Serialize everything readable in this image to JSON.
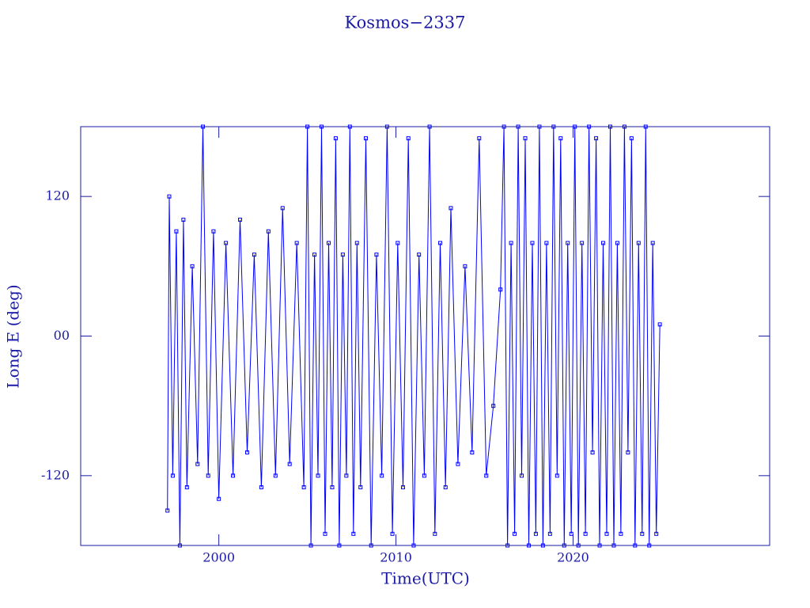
{
  "chart_data": {
    "type": "line",
    "title": "Kosmos−2337",
    "x_label": "Time(UTC)",
    "y_label": "Long E (deg)",
    "color": "#0000ff",
    "xlim": [
      1992.2,
      2031.1
    ],
    "xticks": [
      2000,
      2010,
      2020
    ],
    "ylim": [
      -180,
      180
    ],
    "yticks": [
      -120,
      {
        "value": 0,
        "label": "00"
      },
      120
    ],
    "x": [
      1997.1,
      1997.2,
      1997.4,
      1997.6,
      1997.8,
      1998.0,
      1998.2,
      1998.5,
      1998.8,
      1999.1,
      1999.4,
      1999.7,
      2000.0,
      2000.4,
      2000.8,
      2001.2,
      2001.6,
      2002.0,
      2002.4,
      2002.8,
      2003.2,
      2003.6,
      2004.0,
      2004.4,
      2004.8,
      2005.0,
      2005.2,
      2005.4,
      2005.6,
      2005.8,
      2006.0,
      2006.2,
      2006.4,
      2006.6,
      2006.8,
      2007.0,
      2007.2,
      2007.4,
      2007.6,
      2007.8,
      2008.0,
      2008.3,
      2008.6,
      2008.9,
      2009.2,
      2009.5,
      2009.8,
      2010.1,
      2010.4,
      2010.7,
      2011.0,
      2011.3,
      2011.6,
      2011.9,
      2012.2,
      2012.5,
      2012.8,
      2013.1,
      2013.5,
      2013.9,
      2014.3,
      2014.7,
      2015.1,
      2015.5,
      2015.9,
      2016.1,
      2016.3,
      2016.5,
      2016.7,
      2016.9,
      2017.1,
      2017.3,
      2017.5,
      2017.7,
      2017.9,
      2018.1,
      2018.3,
      2018.5,
      2018.7,
      2018.9,
      2019.1,
      2019.3,
      2019.5,
      2019.7,
      2019.9,
      2020.1,
      2020.3,
      2020.5,
      2020.7,
      2020.9,
      2021.1,
      2021.3,
      2021.5,
      2021.7,
      2021.9,
      2022.1,
      2022.3,
      2022.5,
      2022.7,
      2022.9,
      2023.1,
      2023.3,
      2023.5,
      2023.7,
      2023.9,
      2024.1,
      2024.3,
      2024.5,
      2024.7,
      2024.9
    ],
    "values": [
      -150,
      120,
      -120,
      90,
      -180,
      100,
      -130,
      60,
      -110,
      180,
      -120,
      90,
      -140,
      80,
      -120,
      100,
      -100,
      70,
      -130,
      90,
      -120,
      110,
      -110,
      80,
      -130,
      180,
      -180,
      70,
      -120,
      180,
      -170,
      80,
      -130,
      170,
      -180,
      70,
      -120,
      180,
      -170,
      80,
      -130,
      170,
      -180,
      70,
      -120,
      180,
      -170,
      80,
      -130,
      170,
      -180,
      70,
      -120,
      180,
      -170,
      80,
      -130,
      110,
      -110,
      60,
      -100,
      170,
      -120,
      -60,
      40,
      180,
      -180,
      80,
      -170,
      180,
      -120,
      170,
      -180,
      80,
      -170,
      180,
      -180,
      80,
      -170,
      180,
      -120,
      170,
      -180,
      80,
      -170,
      180,
      -180,
      80,
      -170,
      180,
      -100,
      170,
      -180,
      80,
      -170,
      180,
      -180,
      80,
      -170,
      180,
      -100,
      170,
      -180,
      80,
      -170,
      180,
      -180,
      80,
      -170,
      10
    ]
  }
}
